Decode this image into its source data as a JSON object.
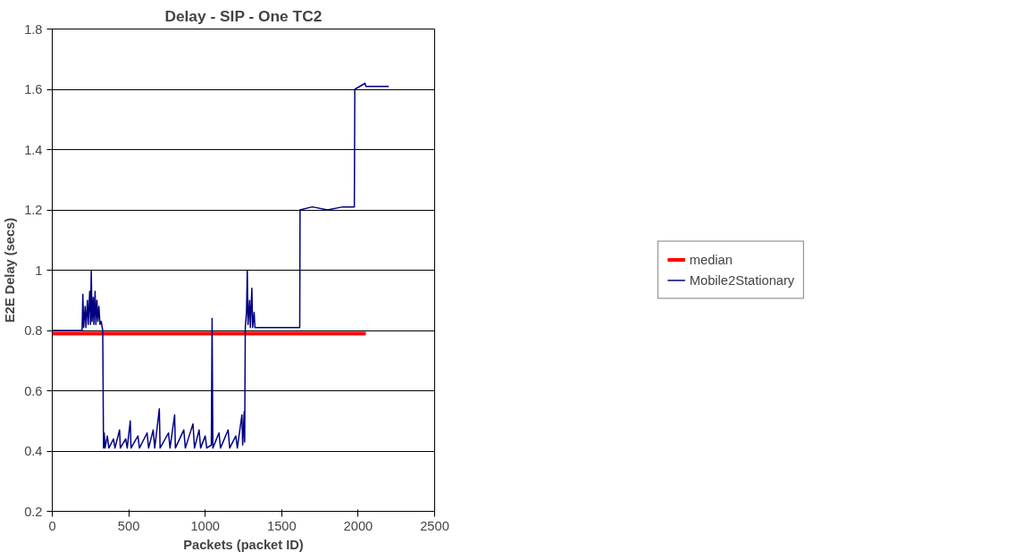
{
  "chart_data": {
    "type": "line",
    "title": "Delay - SIP - One TC2",
    "xlabel": "Packets (packet ID)",
    "ylabel": "E2E Delay (secs)",
    "xlim": [
      0,
      2500
    ],
    "xticks": [
      0,
      500,
      1000,
      1500,
      2000,
      2500
    ],
    "ylim": [
      0.2,
      1.8
    ],
    "yticks": [
      0.2,
      0.4,
      0.6,
      0.8,
      1,
      1.2,
      1.4,
      1.6,
      1.8
    ],
    "grid": "y",
    "legend": "right",
    "marker": "none",
    "line_style": "solid",
    "series": [
      {
        "name": "median",
        "color": "#ff0000",
        "x": [
          0,
          2050
        ],
        "values": [
          0.79,
          0.79
        ]
      },
      {
        "name": "Mobile2Stationary",
        "color": "#000080",
        "x": [
          0,
          100,
          195,
          200,
          205,
          215,
          220,
          230,
          235,
          245,
          250,
          255,
          260,
          268,
          272,
          280,
          285,
          292,
          298,
          305,
          312,
          320,
          330,
          335,
          340,
          345,
          360,
          370,
          400,
          410,
          440,
          445,
          480,
          490,
          510,
          515,
          560,
          570,
          620,
          630,
          660,
          670,
          700,
          705,
          760,
          770,
          800,
          805,
          860,
          870,
          920,
          930,
          960,
          970,
          1000,
          1010,
          1040,
          1045,
          1050,
          1090,
          1100,
          1150,
          1160,
          1200,
          1210,
          1240,
          1245,
          1255,
          1258,
          1262,
          1270,
          1275,
          1280,
          1290,
          1295,
          1305,
          1310,
          1320,
          1325,
          1400,
          1500,
          1618,
          1620,
          1700,
          1800,
          1900,
          1975,
          1978,
          2045,
          2050,
          2200
        ],
        "values": [
          0.8,
          0.8,
          0.8,
          0.92,
          0.81,
          0.88,
          0.81,
          0.9,
          0.82,
          0.93,
          0.82,
          1.0,
          0.83,
          0.91,
          0.82,
          0.93,
          0.82,
          0.9,
          0.83,
          0.88,
          0.82,
          0.83,
          0.8,
          0.41,
          0.46,
          0.41,
          0.45,
          0.41,
          0.44,
          0.41,
          0.47,
          0.41,
          0.44,
          0.41,
          0.5,
          0.41,
          0.45,
          0.41,
          0.46,
          0.41,
          0.47,
          0.41,
          0.54,
          0.41,
          0.46,
          0.41,
          0.52,
          0.41,
          0.47,
          0.41,
          0.49,
          0.41,
          0.47,
          0.41,
          0.45,
          0.41,
          0.42,
          0.84,
          0.41,
          0.46,
          0.41,
          0.47,
          0.41,
          0.45,
          0.41,
          0.52,
          0.42,
          0.53,
          0.43,
          0.81,
          0.86,
          1.0,
          0.82,
          0.9,
          0.81,
          0.94,
          0.81,
          0.86,
          0.81,
          0.81,
          0.81,
          0.81,
          1.2,
          1.21,
          1.2,
          1.21,
          1.21,
          1.6,
          1.62,
          1.61,
          1.61
        ]
      }
    ]
  }
}
